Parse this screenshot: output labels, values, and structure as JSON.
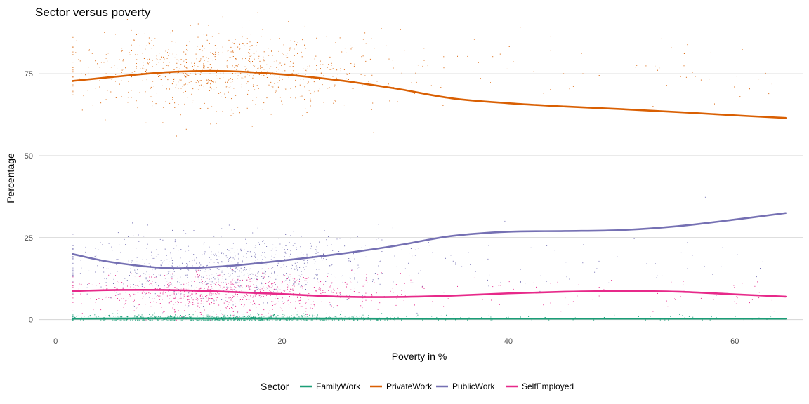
{
  "chart_data": {
    "type": "scatter",
    "title": "Sector versus poverty",
    "xlabel": "Poverty in %",
    "ylabel": "Percentage",
    "xlim": [
      -1.5,
      66
    ],
    "ylim": [
      -2,
      90
    ],
    "x_ticks": [
      0,
      20,
      40,
      60
    ],
    "y_ticks": [
      0,
      25,
      50,
      75
    ],
    "grid": "horizontal-major-only",
    "legend": {
      "title": "Sector",
      "placement": "bottom"
    },
    "series": [
      {
        "name": "FamilyWork",
        "color": "#1b9e77",
        "smooth": [
          [
            1.5,
            0.3
          ],
          [
            10,
            0.4
          ],
          [
            20,
            0.35
          ],
          [
            30,
            0.3
          ],
          [
            40,
            0.3
          ],
          [
            50,
            0.3
          ],
          [
            64.5,
            0.3
          ]
        ],
        "points_center_x": 15,
        "points_spread_x": 7,
        "points_center_y": 0.5,
        "points_spread_y": 0.6
      },
      {
        "name": "PrivateWork",
        "color": "#d95f02",
        "smooth": [
          [
            1.5,
            72.8
          ],
          [
            5,
            74
          ],
          [
            10,
            75.5
          ],
          [
            15,
            75.8
          ],
          [
            20,
            74.8
          ],
          [
            25,
            73
          ],
          [
            30,
            70.5
          ],
          [
            35,
            67.5
          ],
          [
            40,
            66
          ],
          [
            45,
            65
          ],
          [
            50,
            64.2
          ],
          [
            55,
            63.3
          ],
          [
            60,
            62.3
          ],
          [
            64.5,
            61.5
          ]
        ],
        "points_center_x": 15,
        "points_spread_x": 7,
        "points_center_y": 76,
        "points_spread_y": 6
      },
      {
        "name": "PublicWork",
        "color": "#7570b3",
        "smooth": [
          [
            1.5,
            20
          ],
          [
            5,
            17.5
          ],
          [
            10,
            15.7
          ],
          [
            15,
            16.3
          ],
          [
            20,
            18
          ],
          [
            25,
            20
          ],
          [
            30,
            22.5
          ],
          [
            35,
            25.5
          ],
          [
            40,
            26.8
          ],
          [
            45,
            27
          ],
          [
            50,
            27.3
          ],
          [
            55,
            28.5
          ],
          [
            60,
            30.5
          ],
          [
            64.5,
            32.5
          ]
        ],
        "points_center_x": 15,
        "points_spread_x": 7,
        "points_center_y": 16,
        "points_spread_y": 5
      },
      {
        "name": "SelfEmployed",
        "color": "#e7298a",
        "smooth": [
          [
            1.5,
            8.7
          ],
          [
            5,
            9
          ],
          [
            10,
            9
          ],
          [
            15,
            8.5
          ],
          [
            20,
            7.8
          ],
          [
            25,
            7
          ],
          [
            30,
            6.9
          ],
          [
            35,
            7.3
          ],
          [
            40,
            8
          ],
          [
            45,
            8.5
          ],
          [
            50,
            8.7
          ],
          [
            55,
            8.5
          ],
          [
            60,
            7.7
          ],
          [
            64.5,
            7
          ]
        ],
        "points_center_x": 15,
        "points_spread_x": 7,
        "points_center_y": 8,
        "points_spread_y": 3
      }
    ]
  }
}
